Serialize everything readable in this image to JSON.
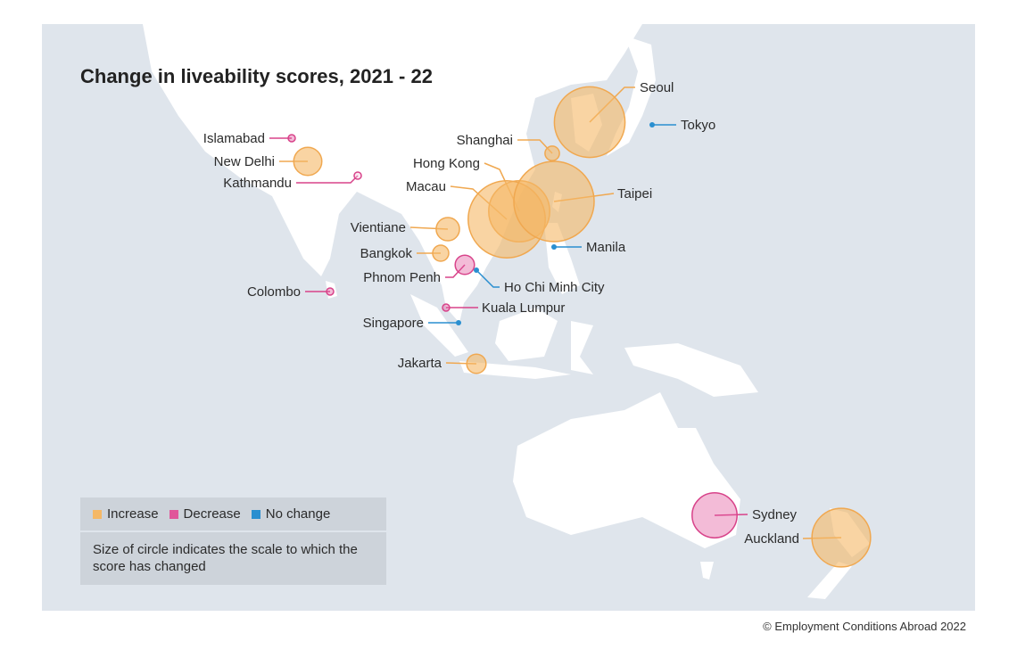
{
  "title": "Change in liveability scores, 2021 - 22",
  "colors": {
    "increase": "#f5b866",
    "decrease": "#e0569a",
    "no_change": "#2a8fd0",
    "sea": "#dfe5ec",
    "land": "#ffffff"
  },
  "legend": {
    "increase": "Increase",
    "decrease": "Decrease",
    "no_change": "No change",
    "note": "Size of circle indicates the scale to which the score has changed"
  },
  "chart_data": {
    "type": "bubble-map",
    "title": "Change in liveability scores, 2021 - 22",
    "size_meaning": "Size of circle indicates the scale to which the score has changed",
    "cities": [
      {
        "name": "Seoul",
        "change": "increase",
        "relative_scale": 0.88
      },
      {
        "name": "Tokyo",
        "change": "no change",
        "relative_scale": 0
      },
      {
        "name": "Shanghai",
        "change": "increase",
        "relative_scale": 0.18
      },
      {
        "name": "Hong Kong",
        "change": "increase",
        "relative_scale": 0.76
      },
      {
        "name": "Macau",
        "change": "increase",
        "relative_scale": 0.96
      },
      {
        "name": "Taipei",
        "change": "increase",
        "relative_scale": 1.0
      },
      {
        "name": "Manila",
        "change": "no change",
        "relative_scale": 0
      },
      {
        "name": "Islamabad",
        "change": "decrease",
        "relative_scale": 0.06
      },
      {
        "name": "New Delhi",
        "change": "increase",
        "relative_scale": 0.35
      },
      {
        "name": "Kathmandu",
        "change": "decrease",
        "relative_scale": 0.09
      },
      {
        "name": "Vientiane",
        "change": "increase",
        "relative_scale": 0.29
      },
      {
        "name": "Bangkok",
        "change": "increase",
        "relative_scale": 0.2
      },
      {
        "name": "Phnom Penh",
        "change": "decrease",
        "relative_scale": 0.24
      },
      {
        "name": "Ho Chi Minh City",
        "change": "no change",
        "relative_scale": 0
      },
      {
        "name": "Colombo",
        "change": "decrease",
        "relative_scale": 0.06
      },
      {
        "name": "Kuala Lumpur",
        "change": "decrease",
        "relative_scale": 0.06
      },
      {
        "name": "Singapore",
        "change": "no change",
        "relative_scale": 0
      },
      {
        "name": "Jakarta",
        "change": "increase",
        "relative_scale": 0.24
      },
      {
        "name": "Sydney",
        "change": "decrease",
        "relative_scale": 0.56
      },
      {
        "name": "Auckland",
        "change": "increase",
        "relative_scale": 0.73
      }
    ]
  },
  "credit": "© Employment Conditions Abroad 2022"
}
